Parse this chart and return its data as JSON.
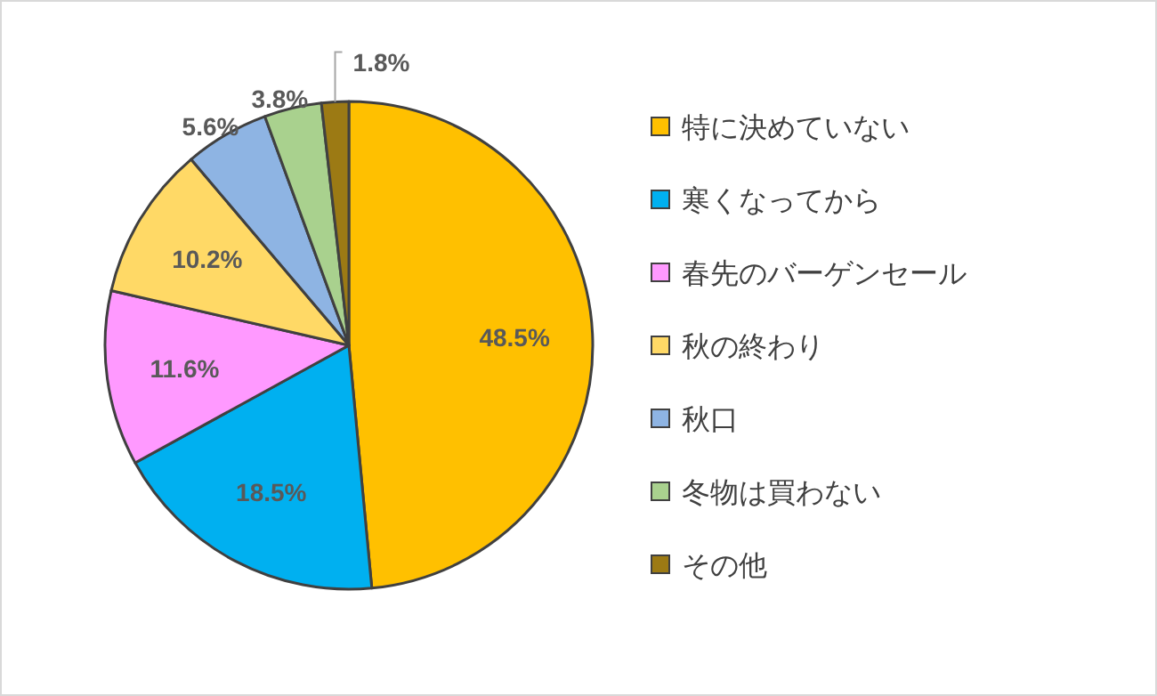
{
  "chart_data": {
    "type": "pie",
    "categories": [
      "特に決めていない",
      "寒くなってから",
      "春先のバーゲンセール",
      "秋の終わり",
      "秋口",
      "冬物は買わない",
      "その他"
    ],
    "values": [
      48.5,
      18.5,
      11.6,
      10.2,
      5.6,
      3.8,
      1.8
    ],
    "colors": [
      "#ffc000",
      "#00b0f0",
      "#ff99ff",
      "#ffd966",
      "#8eb4e3",
      "#a9d18e",
      "#9c7a14"
    ],
    "value_labels": [
      "48.5%",
      "18.5%",
      "11.6%",
      "10.2%",
      "5.6%",
      "3.8%",
      "1.8%"
    ],
    "legend": "right"
  }
}
